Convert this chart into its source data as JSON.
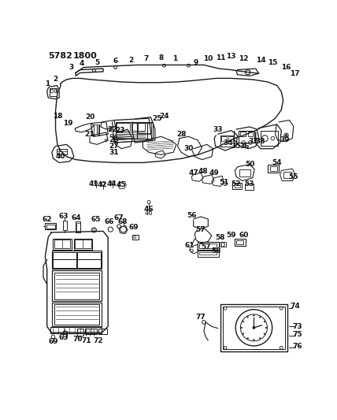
{
  "bg_color": "#ffffff",
  "lc": "#1a1a1a",
  "tc": "#111111",
  "fig_width": 4.28,
  "fig_height": 5.33,
  "dpi": 100,
  "header": [
    "5782",
    "1800"
  ]
}
